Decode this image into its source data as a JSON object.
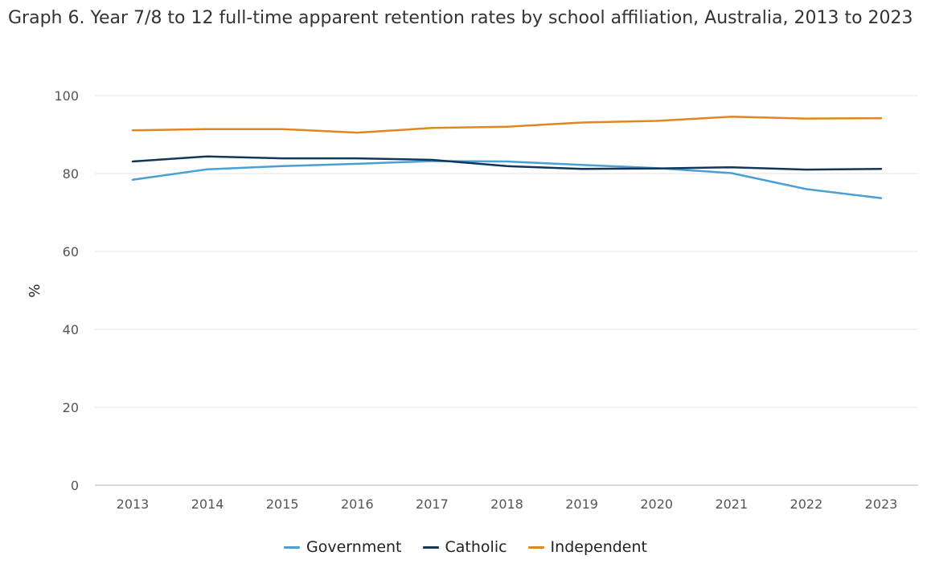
{
  "title": "Graph 6. Year 7/8 to 12 full-time apparent retention rates by school affiliation, Australia, 2013 to 2023",
  "chart_data": {
    "type": "line",
    "title": "Graph 6. Year 7/8 to 12 full-time apparent retention rates by school affiliation, Australia, 2013 to 2023",
    "xlabel": "",
    "ylabel": "%",
    "categories": [
      "2013",
      "2014",
      "2015",
      "2016",
      "2017",
      "2018",
      "2019",
      "2020",
      "2021",
      "2022",
      "2023"
    ],
    "ylim": [
      0,
      100
    ],
    "yticks": [
      0,
      20,
      40,
      60,
      80,
      100
    ],
    "ytick_labels": [
      "0",
      "20",
      "40",
      "60",
      "80",
      "100"
    ],
    "grid": true,
    "legend_position": "bottom",
    "series": [
      {
        "name": "Government",
        "color": "#4a9fd4",
        "values": [
          78.4,
          81.1,
          81.9,
          82.5,
          83.2,
          83.1,
          82.2,
          81.4,
          80.1,
          76.0,
          73.7
        ]
      },
      {
        "name": "Catholic",
        "color": "#12365a",
        "values": [
          83.1,
          84.4,
          83.9,
          83.9,
          83.5,
          81.9,
          81.2,
          81.3,
          81.6,
          81.0,
          81.2
        ]
      },
      {
        "name": "Independent",
        "color": "#e08722",
        "values": [
          91.1,
          91.4,
          91.4,
          90.5,
          91.7,
          92.0,
          93.1,
          93.5,
          94.6,
          94.1,
          94.2
        ]
      }
    ]
  }
}
